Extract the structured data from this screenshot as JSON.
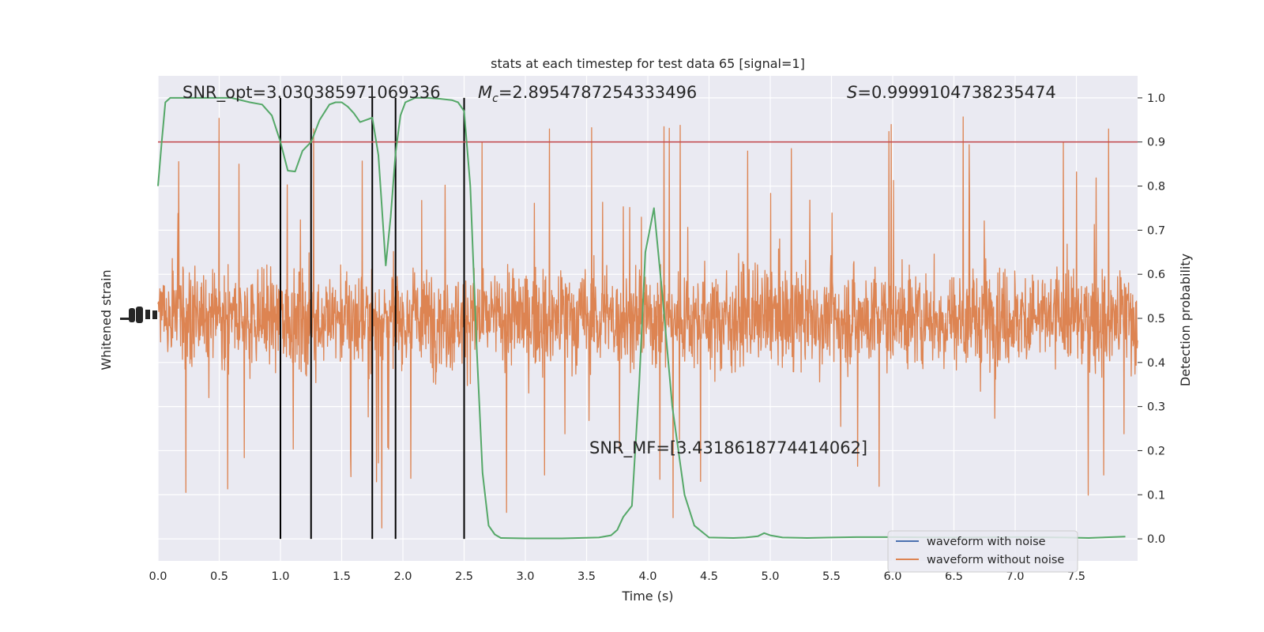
{
  "chart_data": {
    "type": "line",
    "title": "stats at each timestep for test data 65 [signal=1]",
    "xlabel": "Time (s)",
    "ylabel_left": "Whitened strain",
    "ylabel_right": "Detection probability",
    "xlim": [
      0,
      8.0
    ],
    "ylim_right": [
      -0.05,
      1.05
    ],
    "x_ticks": [
      "0.0",
      "0.5",
      "1.0",
      "1.5",
      "2.0",
      "2.5",
      "3.0",
      "3.5",
      "4.0",
      "4.5",
      "5.0",
      "5.5",
      "6.0",
      "6.5",
      "7.0",
      "7.5"
    ],
    "x_tick_values": [
      0.0,
      0.5,
      1.0,
      1.5,
      2.0,
      2.5,
      3.0,
      3.5,
      4.0,
      4.5,
      5.0,
      5.5,
      6.0,
      6.5,
      7.0,
      7.5
    ],
    "y_ticks_right": [
      "0.0",
      "0.1",
      "0.2",
      "0.3",
      "0.4",
      "0.5",
      "0.6",
      "0.7",
      "0.8",
      "0.9",
      "1.0"
    ],
    "y_tick_values_right": [
      0.0,
      0.1,
      0.2,
      0.3,
      0.4,
      0.5,
      0.6,
      0.7,
      0.8,
      0.9,
      1.0
    ],
    "grid": true,
    "legend_position": "lower right",
    "annotations": {
      "snr_opt": "SNR_opt=3.030385971069336",
      "mc_symbol": "M",
      "mc_sub": "c",
      "mc_value": "=2.8954787254333496",
      "s_symbol": "S",
      "s_value": "=0.9999104738235474",
      "snr_mf": "SNR_MF=[3.431861877441406​2]"
    },
    "threshold": 0.9,
    "vertical_lines_x": [
      1.0,
      1.25,
      1.75,
      1.94,
      2.5
    ],
    "series": [
      {
        "name": "waveform with noise",
        "color": "#4c72b0"
      },
      {
        "name": "waveform without noise",
        "color": "#dd8452",
        "note_band_center": 0.5
      },
      {
        "color": "#55a868",
        "x": [
          0.0,
          0.03,
          0.06,
          0.1,
          0.2,
          0.3,
          0.45,
          0.6,
          0.75,
          0.85,
          0.93,
          1.0,
          1.06,
          1.12,
          1.18,
          1.25,
          1.32,
          1.4,
          1.45,
          1.5,
          1.55,
          1.6,
          1.65,
          1.7,
          1.75,
          1.8,
          1.86,
          1.9,
          1.94,
          1.98,
          2.02,
          2.1,
          2.2,
          2.3,
          2.4,
          2.45,
          2.5,
          2.55,
          2.6,
          2.65,
          2.7,
          2.75,
          2.8,
          3.0,
          3.3,
          3.6,
          3.7,
          3.75,
          3.8,
          3.87,
          3.93,
          3.98,
          4.05,
          4.12,
          4.2,
          4.3,
          4.38,
          4.5,
          4.7,
          4.8,
          4.9,
          4.95,
          5.0,
          5.1,
          5.3,
          5.5,
          5.7,
          6.0,
          6.5,
          7.0,
          7.4,
          7.6,
          7.9
        ],
        "y": [
          0.8,
          0.9,
          0.99,
          1.0,
          1.0,
          1.0,
          1.0,
          1.0,
          0.99,
          0.985,
          0.96,
          0.9,
          0.835,
          0.833,
          0.88,
          0.9,
          0.95,
          0.985,
          0.99,
          0.99,
          0.98,
          0.965,
          0.945,
          0.95,
          0.955,
          0.87,
          0.62,
          0.73,
          0.875,
          0.96,
          0.99,
          1.0,
          1.0,
          0.998,
          0.995,
          0.99,
          0.97,
          0.8,
          0.45,
          0.15,
          0.03,
          0.01,
          0.002,
          0.001,
          0.001,
          0.003,
          0.008,
          0.02,
          0.05,
          0.075,
          0.35,
          0.65,
          0.75,
          0.55,
          0.3,
          0.1,
          0.03,
          0.003,
          0.002,
          0.003,
          0.006,
          0.013,
          0.008,
          0.003,
          0.002,
          0.003,
          0.004,
          0.004,
          0.003,
          0.004,
          0.003,
          0.002,
          0.005
        ]
      }
    ]
  }
}
